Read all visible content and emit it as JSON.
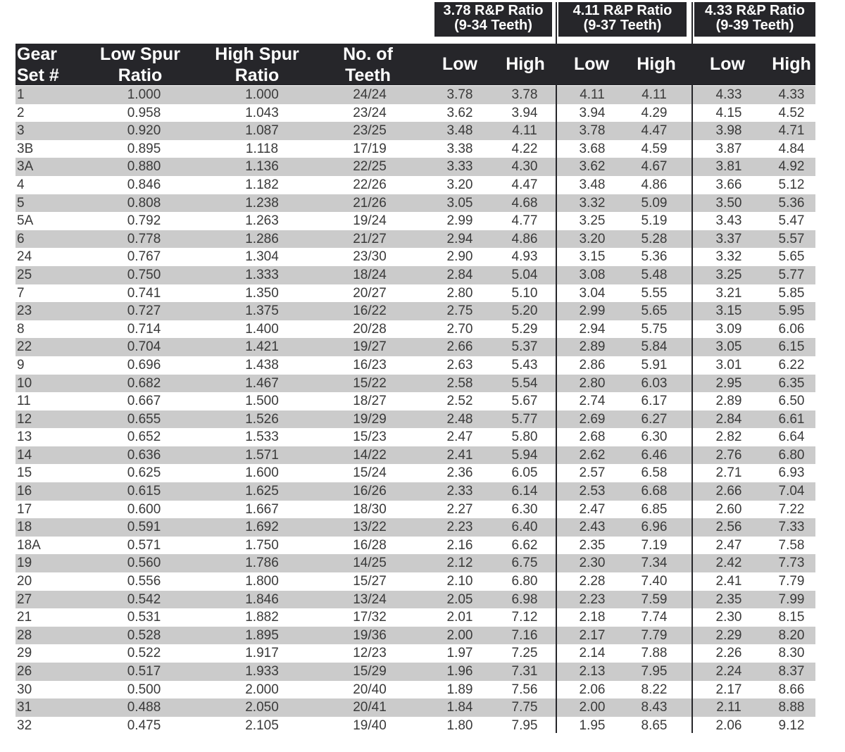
{
  "groups": [
    {
      "line1": "3.78 R&P Ratio",
      "line2": "(9-34 Teeth)"
    },
    {
      "line1": "4.11 R&P Ratio",
      "line2": "(9-37 Teeth)"
    },
    {
      "line1": "4.33 R&P Ratio",
      "line2": "(9-39 Teeth)"
    }
  ],
  "headers": {
    "gear_1": "Gear",
    "gear_2": "Set #",
    "low_1": "Low Spur",
    "low_2": "Ratio",
    "high_1": "High Spur",
    "high_2": "Ratio",
    "teeth_1": "No. of",
    "teeth_2": "Teeth",
    "low": "Low",
    "high": "High"
  },
  "rows": [
    [
      "1",
      "1.000",
      "1.000",
      "24/24",
      "3.78",
      "3.78",
      "4.11",
      "4.11",
      "4.33",
      "4.33"
    ],
    [
      "2",
      "0.958",
      "1.043",
      "23/24",
      "3.62",
      "3.94",
      "3.94",
      "4.29",
      "4.15",
      "4.52"
    ],
    [
      "3",
      "0.920",
      "1.087",
      "23/25",
      "3.48",
      "4.11",
      "3.78",
      "4.47",
      "3.98",
      "4.71"
    ],
    [
      "3B",
      "0.895",
      "1.118",
      "17/19",
      "3.38",
      "4.22",
      "3.68",
      "4.59",
      "3.87",
      "4.84"
    ],
    [
      "3A",
      "0.880",
      "1.136",
      "22/25",
      "3.33",
      "4.30",
      "3.62",
      "4.67",
      "3.81",
      "4.92"
    ],
    [
      "4",
      "0.846",
      "1.182",
      "22/26",
      "3.20",
      "4.47",
      "3.48",
      "4.86",
      "3.66",
      "5.12"
    ],
    [
      "5",
      "0.808",
      "1.238",
      "21/26",
      "3.05",
      "4.68",
      "3.32",
      "5.09",
      "3.50",
      "5.36"
    ],
    [
      "5A",
      "0.792",
      "1.263",
      "19/24",
      "2.99",
      "4.77",
      "3.25",
      "5.19",
      "3.43",
      "5.47"
    ],
    [
      "6",
      "0.778",
      "1.286",
      "21/27",
      "2.94",
      "4.86",
      "3.20",
      "5.28",
      "3.37",
      "5.57"
    ],
    [
      "24",
      "0.767",
      "1.304",
      "23/30",
      "2.90",
      "4.93",
      "3.15",
      "5.36",
      "3.32",
      "5.65"
    ],
    [
      "25",
      "0.750",
      "1.333",
      "18/24",
      "2.84",
      "5.04",
      "3.08",
      "5.48",
      "3.25",
      "5.77"
    ],
    [
      "7",
      "0.741",
      "1.350",
      "20/27",
      "2.80",
      "5.10",
      "3.04",
      "5.55",
      "3.21",
      "5.85"
    ],
    [
      "23",
      "0.727",
      "1.375",
      "16/22",
      "2.75",
      "5.20",
      "2.99",
      "5.65",
      "3.15",
      "5.95"
    ],
    [
      "8",
      "0.714",
      "1.400",
      "20/28",
      "2.70",
      "5.29",
      "2.94",
      "5.75",
      "3.09",
      "6.06"
    ],
    [
      "22",
      "0.704",
      "1.421",
      "19/27",
      "2.66",
      "5.37",
      "2.89",
      "5.84",
      "3.05",
      "6.15"
    ],
    [
      "9",
      "0.696",
      "1.438",
      "16/23",
      "2.63",
      "5.43",
      "2.86",
      "5.91",
      "3.01",
      "6.22"
    ],
    [
      "10",
      "0.682",
      "1.467",
      "15/22",
      "2.58",
      "5.54",
      "2.80",
      "6.03",
      "2.95",
      "6.35"
    ],
    [
      "11",
      "0.667",
      "1.500",
      "18/27",
      "2.52",
      "5.67",
      "2.74",
      "6.17",
      "2.89",
      "6.50"
    ],
    [
      "12",
      "0.655",
      "1.526",
      "19/29",
      "2.48",
      "5.77",
      "2.69",
      "6.27",
      "2.84",
      "6.61"
    ],
    [
      "13",
      "0.652",
      "1.533",
      "15/23",
      "2.47",
      "5.80",
      "2.68",
      "6.30",
      "2.82",
      "6.64"
    ],
    [
      "14",
      "0.636",
      "1.571",
      "14/22",
      "2.41",
      "5.94",
      "2.62",
      "6.46",
      "2.76",
      "6.80"
    ],
    [
      "15",
      "0.625",
      "1.600",
      "15/24",
      "2.36",
      "6.05",
      "2.57",
      "6.58",
      "2.71",
      "6.93"
    ],
    [
      "16",
      "0.615",
      "1.625",
      "16/26",
      "2.33",
      "6.14",
      "2.53",
      "6.68",
      "2.66",
      "7.04"
    ],
    [
      "17",
      "0.600",
      "1.667",
      "18/30",
      "2.27",
      "6.30",
      "2.47",
      "6.85",
      "2.60",
      "7.22"
    ],
    [
      "18",
      "0.591",
      "1.692",
      "13/22",
      "2.23",
      "6.40",
      "2.43",
      "6.96",
      "2.56",
      "7.33"
    ],
    [
      "18A",
      "0.571",
      "1.750",
      "16/28",
      "2.16",
      "6.62",
      "2.35",
      "7.19",
      "2.47",
      "7.58"
    ],
    [
      "19",
      "0.560",
      "1.786",
      "14/25",
      "2.12",
      "6.75",
      "2.30",
      "7.34",
      "2.42",
      "7.73"
    ],
    [
      "20",
      "0.556",
      "1.800",
      "15/27",
      "2.10",
      "6.80",
      "2.28",
      "7.40",
      "2.41",
      "7.79"
    ],
    [
      "27",
      "0.542",
      "1.846",
      "13/24",
      "2.05",
      "6.98",
      "2.23",
      "7.59",
      "2.35",
      "7.99"
    ],
    [
      "21",
      "0.531",
      "1.882",
      "17/32",
      "2.01",
      "7.12",
      "2.18",
      "7.74",
      "2.30",
      "8.15"
    ],
    [
      "28",
      "0.528",
      "1.895",
      "19/36",
      "2.00",
      "7.16",
      "2.17",
      "7.79",
      "2.29",
      "8.20"
    ],
    [
      "29",
      "0.522",
      "1.917",
      "12/23",
      "1.97",
      "7.25",
      "2.14",
      "7.88",
      "2.26",
      "8.30"
    ],
    [
      "26",
      "0.517",
      "1.933",
      "15/29",
      "1.96",
      "7.31",
      "2.13",
      "7.95",
      "2.24",
      "8.37"
    ],
    [
      "30",
      "0.500",
      "2.000",
      "20/40",
      "1.89",
      "7.56",
      "2.06",
      "8.22",
      "2.17",
      "8.66"
    ],
    [
      "31",
      "0.488",
      "2.050",
      "20/41",
      "1.84",
      "7.75",
      "2.00",
      "8.43",
      "2.11",
      "8.88"
    ],
    [
      "32",
      "0.475",
      "2.105",
      "19/40",
      "1.80",
      "7.95",
      "1.95",
      "8.65",
      "2.06",
      "9.12"
    ]
  ]
}
